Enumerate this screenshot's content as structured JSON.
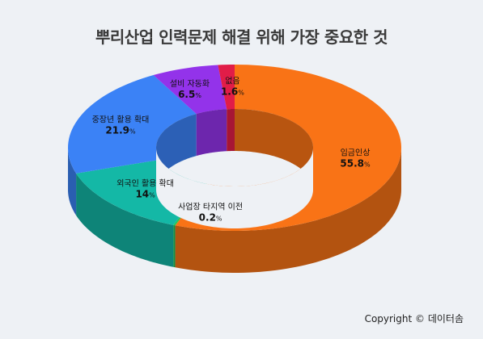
{
  "chart_data": {
    "type": "pie",
    "title": "뿌리산업 인력문제 해결 위해 가장 중요한 것",
    "unit": "%",
    "slices": [
      {
        "label": "임금인상",
        "value": 55.8,
        "display": "55.8",
        "color": "#f97316"
      },
      {
        "label": "사업장 타지역 이전",
        "value": 0.2,
        "display": "0.2",
        "color": "#22c55e"
      },
      {
        "label": "외국인 활용 확대",
        "value": 14,
        "display": "14",
        "color": "#14b8a6"
      },
      {
        "label": "중장년 활용 확대",
        "value": 21.9,
        "display": "21.9",
        "color": "#3b82f6"
      },
      {
        "label": "설비 자동화",
        "value": 6.5,
        "display": "6.5",
        "color": "#9333ea"
      },
      {
        "label": "없음",
        "value": 1.6,
        "display": "1.6",
        "color": "#e11d48"
      }
    ]
  },
  "footer": {
    "copyright": "Copyright © 데이터솜"
  }
}
